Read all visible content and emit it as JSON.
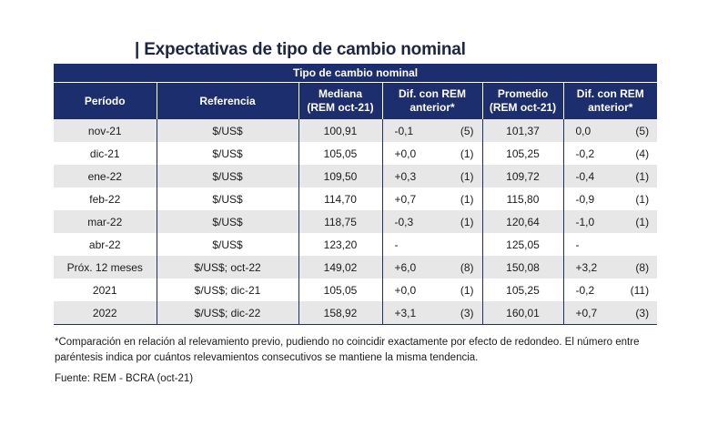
{
  "title": "| Expectativas de tipo de cambio nominal",
  "table": {
    "group_header": "Tipo de cambio nominal",
    "columns": {
      "periodo": "Período",
      "referencia": "Referencia",
      "mediana_line1": "Mediana",
      "mediana_line2": "(REM oct-21)",
      "dif_med_line1": "Dif. con REM",
      "dif_med_line2": "anterior*",
      "promedio_line1": "Promedio",
      "promedio_line2": "(REM oct-21)",
      "dif_prom_line1": "Dif. con REM",
      "dif_prom_line2": "anterior*"
    },
    "rows": [
      {
        "periodo": "nov-21",
        "referencia": "$/US$",
        "mediana": "100,91",
        "dif_mediana": "-0,1",
        "cons_mediana": "(5)",
        "promedio": "101,37",
        "dif_promedio": "0,0",
        "cons_promedio": "(5)"
      },
      {
        "periodo": "dic-21",
        "referencia": "$/US$",
        "mediana": "105,05",
        "dif_mediana": "+0,0",
        "cons_mediana": "(1)",
        "promedio": "105,25",
        "dif_promedio": "-0,2",
        "cons_promedio": "(4)"
      },
      {
        "periodo": "ene-22",
        "referencia": "$/US$",
        "mediana": "109,50",
        "dif_mediana": "+0,3",
        "cons_mediana": "(1)",
        "promedio": "109,72",
        "dif_promedio": "-0,4",
        "cons_promedio": "(1)"
      },
      {
        "periodo": "feb-22",
        "referencia": "$/US$",
        "mediana": "114,70",
        "dif_mediana": "+0,7",
        "cons_mediana": "(1)",
        "promedio": "115,80",
        "dif_promedio": "-0,9",
        "cons_promedio": "(1)"
      },
      {
        "periodo": "mar-22",
        "referencia": "$/US$",
        "mediana": "118,75",
        "dif_mediana": "-0,3",
        "cons_mediana": "(1)",
        "promedio": "120,64",
        "dif_promedio": "-1,0",
        "cons_promedio": "(1)"
      },
      {
        "periodo": "abr-22",
        "referencia": "$/US$",
        "mediana": "123,20",
        "dif_mediana": "-",
        "cons_mediana": "",
        "promedio": "125,05",
        "dif_promedio": "-",
        "cons_promedio": ""
      },
      {
        "periodo": "Próx. 12 meses",
        "referencia": "$/US$; oct-22",
        "mediana": "149,02",
        "dif_mediana": "+6,0",
        "cons_mediana": "(8)",
        "promedio": "150,08",
        "dif_promedio": "+3,2",
        "cons_promedio": "(8)"
      },
      {
        "periodo": "2021",
        "referencia": "$/US$; dic-21",
        "mediana": "105,05",
        "dif_mediana": "+0,0",
        "cons_mediana": "(1)",
        "promedio": "105,25",
        "dif_promedio": "-0,2",
        "cons_promedio": "(11)"
      },
      {
        "periodo": "2022",
        "referencia": "$/US$; dic-22",
        "mediana": "158,92",
        "dif_mediana": "+3,1",
        "cons_mediana": "(3)",
        "promedio": "160,01",
        "dif_promedio": "+0,7",
        "cons_promedio": "(3)"
      }
    ]
  },
  "footnote": "*Comparación en relación al relevamiento previo, pudiendo no coincidir exactamente por efecto de redondeo. El número entre paréntesis indica por cuántos relevamientos consecutivos se mantiene la misma tendencia.",
  "source": "Fuente: REM - BCRA (oct-21)",
  "colors": {
    "header_bg": "#1d2e6e",
    "stripe": "#e7e7e7",
    "title": "#1e2540"
  }
}
